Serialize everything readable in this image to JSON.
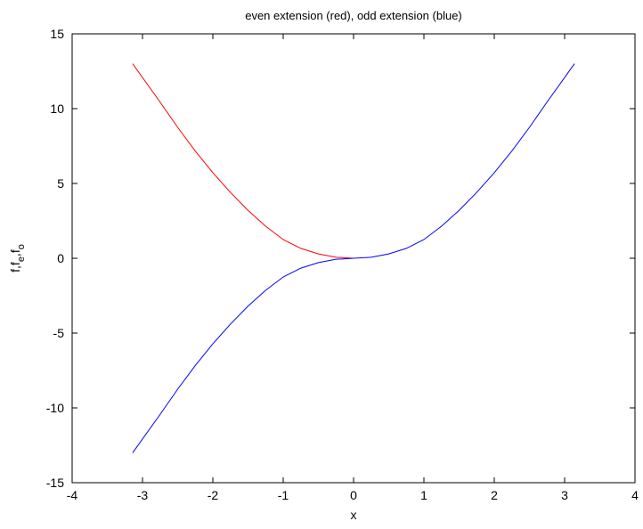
{
  "chart_data": {
    "type": "line",
    "title": "even extension (red), odd extension (blue)",
    "xlabel": "x",
    "ylabel": {
      "parts": [
        {
          "text": "f,f",
          "sub": false
        },
        {
          "text": "e",
          "sub": true
        },
        {
          "text": ",f",
          "sub": false
        },
        {
          "text": "o",
          "sub": true
        }
      ]
    },
    "xlim": [
      -4,
      4
    ],
    "ylim": [
      -15,
      15
    ],
    "xticks": [
      -4,
      -3,
      -2,
      -1,
      0,
      1,
      2,
      3,
      4
    ],
    "yticks": [
      -15,
      -10,
      -5,
      0,
      5,
      10,
      15
    ],
    "xtick_labels": [
      "-4",
      "-3",
      "-2",
      "-1",
      "0",
      "1",
      "2",
      "3",
      "4"
    ],
    "ytick_labels": [
      "-15",
      "-10",
      "-5",
      "0",
      "5",
      "10",
      "15"
    ],
    "grid": false,
    "series": [
      {
        "color": "#ff0000",
        "x": [
          -3.14,
          -2.75,
          -2.5,
          -2.25,
          -2.0,
          -1.75,
          -1.5,
          -1.25,
          -1.0,
          -0.75,
          -0.5,
          -0.25,
          0.0
        ],
        "y": [
          13.0,
          10.44,
          8.75,
          7.17,
          5.72,
          4.4,
          3.2,
          2.14,
          1.25,
          0.66,
          0.29,
          0.07,
          0.0
        ]
      },
      {
        "color": "#0000ff",
        "x": [
          -3.14,
          -2.75,
          -2.5,
          -2.25,
          -2.0,
          -1.75,
          -1.5,
          -1.25,
          -1.0,
          -0.75,
          -0.5,
          -0.25,
          0.0,
          0.25,
          0.5,
          0.75,
          1.0,
          1.25,
          1.5,
          1.75,
          2.0,
          2.25,
          2.5,
          2.75,
          3.14
        ],
        "y": [
          -13.0,
          -10.44,
          -8.75,
          -7.17,
          -5.72,
          -4.4,
          -3.2,
          -2.14,
          -1.25,
          -0.66,
          -0.29,
          -0.07,
          0.0,
          0.07,
          0.29,
          0.66,
          1.25,
          2.14,
          3.2,
          4.4,
          5.72,
          7.17,
          8.75,
          10.44,
          13.0
        ]
      }
    ]
  }
}
